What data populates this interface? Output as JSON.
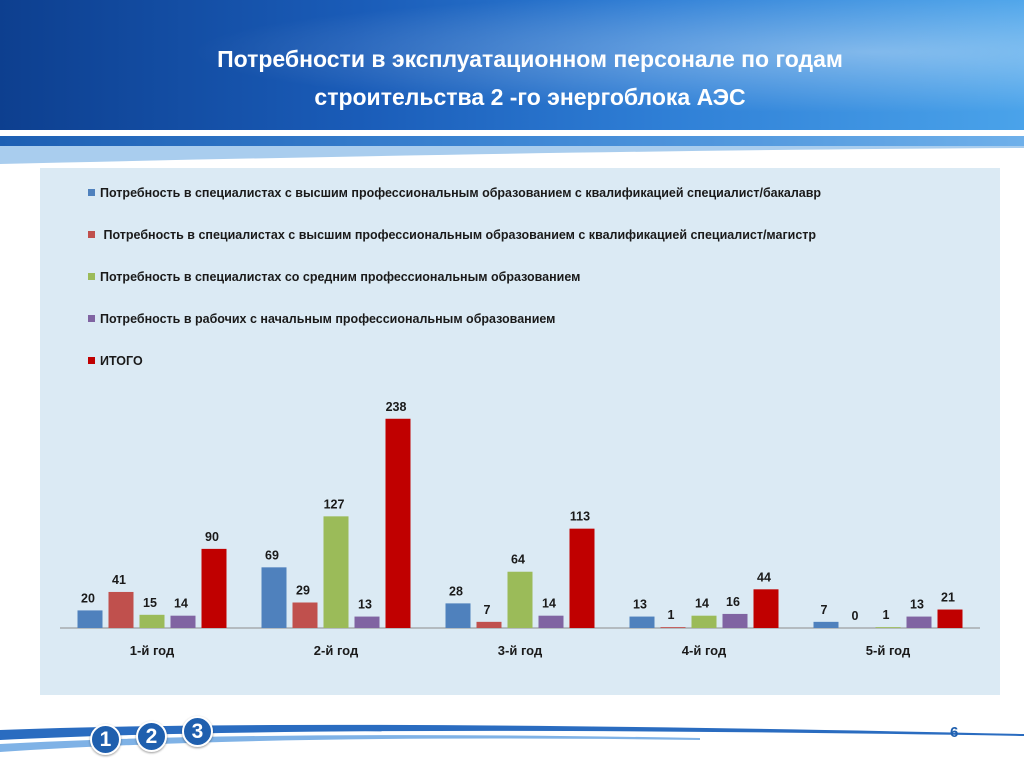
{
  "title_line1": "Потребности в эксплуатационном  персонале по годам",
  "title_line2": "строительства  2 -го энергоблока АЭС",
  "page_number": "6",
  "badges": [
    "1",
    "2",
    "3"
  ],
  "chart_data": {
    "type": "bar",
    "title": "",
    "xlabel": "",
    "ylabel": "",
    "categories": [
      "1-й год",
      "2-й год",
      "3-й год",
      "4-й год",
      "5-й год"
    ],
    "ylim": [
      0,
      240
    ],
    "grid": false,
    "legend_position": "top-left",
    "series": [
      {
        "name": "Потребность в специалистах с высшим профессиональным образованием с квалификацией специалист/бакалавр",
        "color": "#4f81bd",
        "values": [
          20,
          69,
          28,
          13,
          7
        ]
      },
      {
        "name": " Потребность в специалистах с высшим профессиональным образованием с квалификацией специалист/магистр",
        "color": "#c0504d",
        "values": [
          41,
          29,
          7,
          1,
          0
        ]
      },
      {
        "name": "Потребность в специалистах со средним профессиональным образованием",
        "color": "#9bbb59",
        "values": [
          15,
          127,
          64,
          14,
          1
        ]
      },
      {
        "name": "Потребность в рабочих с начальным профессиональным образованием",
        "color": "#8064a2",
        "values": [
          14,
          13,
          14,
          16,
          13
        ]
      },
      {
        "name": "ИТОГО",
        "color": "#c00000",
        "values": [
          90,
          238,
          113,
          44,
          21
        ]
      }
    ]
  }
}
